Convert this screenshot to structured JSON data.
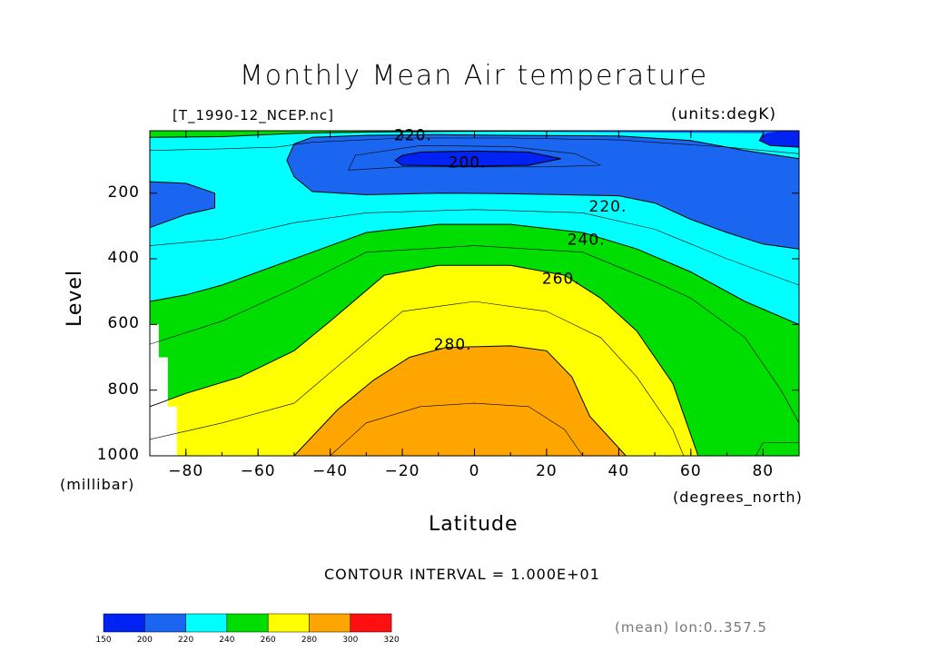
{
  "header": {
    "title": "Monthly Mean Air temperature",
    "file_label": "[T_1990-12_NCEP.nc]",
    "units_label": "(units:degK)"
  },
  "footer": {
    "contour_interval": "CONTOUR INTERVAL = 1.000E+01",
    "mean_note": "(mean) lon:0..357.5"
  },
  "chart_data": {
    "type": "contour",
    "title": "Monthly Mean Air temperature",
    "xlabel": "Latitude",
    "x_units": "(degrees_north)",
    "ylabel": "Level",
    "y_units": "(millibar)",
    "xlim": [
      -90,
      90
    ],
    "ylim": [
      1000,
      10
    ],
    "y_reversed": true,
    "x_ticks": [
      -80,
      -60,
      -40,
      -20,
      0,
      20,
      40,
      60,
      80
    ],
    "x_tick_labels": [
      "−80",
      "−60",
      "−40",
      "−20",
      "0",
      "20",
      "40",
      "60",
      "80"
    ],
    "y_ticks": [
      200,
      400,
      600,
      800,
      1000
    ],
    "y_tick_labels": [
      "200",
      "400",
      "600",
      "800",
      "1000"
    ],
    "contour_interval": 10,
    "contour_labels": [
      {
        "text": "220.",
        "lat": -17,
        "level": 22
      },
      {
        "text": "200.",
        "lat": -2,
        "level": 105
      },
      {
        "text": "220.",
        "lat": 37,
        "level": 240
      },
      {
        "text": "240.",
        "lat": 31,
        "level": 340
      },
      {
        "text": "260.",
        "lat": 24,
        "level": 460
      },
      {
        "text": "280.",
        "lat": -6,
        "level": 660
      }
    ],
    "colorbar": {
      "levels": [
        "150",
        "200",
        "220",
        "240",
        "260",
        "280",
        "300",
        "320"
      ],
      "colors": [
        "#0022f2",
        "#1a66f0",
        "#00ffff",
        "#00dd00",
        "#ffff00",
        "#ffa500",
        "#ff1010"
      ]
    },
    "fill_colors": {
      "lt200": "#0022f2",
      "b200_220": "#1a66f0",
      "b220_240": "#00ffff",
      "b240_260": "#00dd00",
      "b260_280": "#ffff00",
      "b280_300": "#ffa500",
      "missing": "#ffffff"
    }
  }
}
